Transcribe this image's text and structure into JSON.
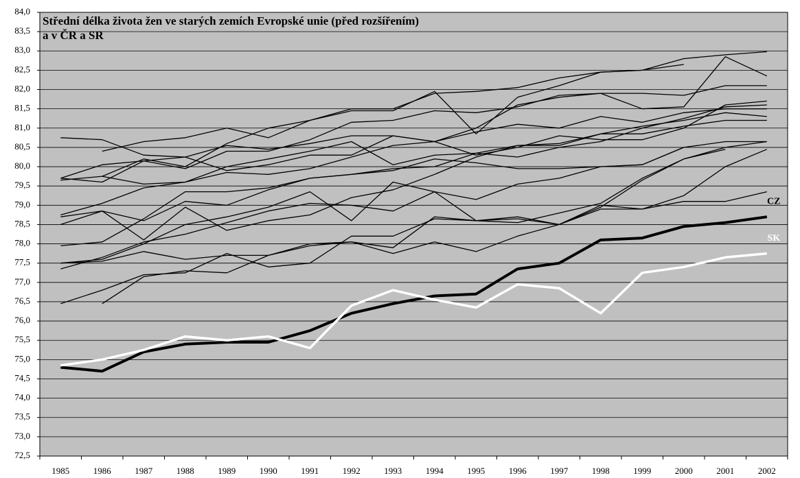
{
  "chart_data": {
    "type": "line",
    "title": [
      "Střední délka života žen ve starých zemích Evropské unie (před rozšířením)",
      "a v ČR a SR"
    ],
    "categories": [
      "1985",
      "1986",
      "1987",
      "1988",
      "1989",
      "1990",
      "1991",
      "1992",
      "1993",
      "1994",
      "1995",
      "1996",
      "1997",
      "1998",
      "1999",
      "2000",
      "2001",
      "2002"
    ],
    "ylim": [
      72.5,
      84.0
    ],
    "yticks": [
      {
        "value": 72.5,
        "label": "72,5"
      },
      {
        "value": 73,
        "label": "73,0"
      },
      {
        "value": 73.5,
        "label": "73,5"
      },
      {
        "value": 74,
        "label": "74,0"
      },
      {
        "value": 74.5,
        "label": "74,5"
      },
      {
        "value": 75,
        "label": "75,0"
      },
      {
        "value": 75.5,
        "label": "75,5"
      },
      {
        "value": 76,
        "label": "76,0"
      },
      {
        "value": 76.5,
        "label": "76,5"
      },
      {
        "value": 77,
        "label": "77,0"
      },
      {
        "value": 77.5,
        "label": "77,5"
      },
      {
        "value": 78,
        "label": "78,0"
      },
      {
        "value": 78.5,
        "label": "78,5"
      },
      {
        "value": 79,
        "label": "79,0"
      },
      {
        "value": 79.5,
        "label": "79,5"
      },
      {
        "value": 80,
        "label": "80,0"
      },
      {
        "value": 80.5,
        "label": "80,5"
      },
      {
        "value": 81,
        "label": "81,0"
      },
      {
        "value": 81.5,
        "label": "81,5"
      },
      {
        "value": 82,
        "label": "82,0"
      },
      {
        "value": 82.5,
        "label": "82,5"
      },
      {
        "value": 83,
        "label": "83,0"
      },
      {
        "value": 83.5,
        "label": "83,5"
      },
      {
        "value": 84,
        "label": "84,0"
      }
    ],
    "grid": true,
    "series": [
      {
        "color": "#000000",
        "line_width": 1.3,
        "values": [
          80.75,
          80.7,
          80.3,
          80.25,
          80.55,
          80.45,
          80.6,
          80.8,
          80.8,
          80.65,
          80.9,
          81.1,
          81.0,
          81.3,
          81.15,
          81.4,
          81.5,
          81.5
        ]
      },
      {
        "color": "#000000",
        "line_width": 1.3,
        "values": [
          null,
          80.4,
          80.65,
          80.75,
          81.0,
          80.75,
          81.2,
          81.45,
          81.45,
          81.95,
          80.85,
          81.8,
          82.1,
          82.45,
          82.5,
          82.8,
          82.9,
          82.98
        ]
      },
      {
        "color": "#000000",
        "line_width": 1.3,
        "values": [
          79.7,
          80.05,
          80.15,
          80.25,
          79.9,
          80.05,
          80.3,
          80.3,
          80.8,
          80.65,
          81.0,
          81.6,
          81.8,
          81.9,
          81.5,
          81.55,
          82.85,
          82.35
        ]
      },
      {
        "color": "#000000",
        "line_width": 1.3,
        "values": [
          79.65,
          79.75,
          80.2,
          80.0,
          80.6,
          81.0,
          81.2,
          81.5,
          81.5,
          81.9,
          81.95,
          82.05,
          82.3,
          82.45,
          82.5,
          82.65,
          null,
          null
        ]
      },
      {
        "color": "#000000",
        "line_width": 1.3,
        "values": [
          79.7,
          79.6,
          80.15,
          79.95,
          80.4,
          80.4,
          80.7,
          81.15,
          81.2,
          81.45,
          81.4,
          81.55,
          81.85,
          81.9,
          81.9,
          81.85,
          82.1,
          82.1
        ]
      },
      {
        "color": "#000000",
        "line_width": 1.3,
        "values": [
          null,
          79.75,
          79.55,
          79.6,
          79.85,
          79.8,
          79.95,
          80.25,
          80.55,
          80.65,
          80.3,
          80.5,
          80.8,
          80.7,
          80.7,
          81.0,
          81.6,
          81.7
        ]
      },
      {
        "color": "#000000",
        "line_width": 1.3,
        "values": [
          78.75,
          79.05,
          79.45,
          79.6,
          80.0,
          80.2,
          80.4,
          80.65,
          80.05,
          80.3,
          80.35,
          80.55,
          80.6,
          80.85,
          81.05,
          81.2,
          81.4,
          81.3
        ]
      },
      {
        "color": "#000000",
        "line_width": 1.3,
        "values": [
          78.7,
          78.85,
          78.6,
          79.1,
          79.0,
          79.4,
          79.7,
          79.8,
          79.9,
          80.2,
          80.1,
          79.95,
          79.95,
          80.0,
          80.05,
          80.5,
          80.65,
          80.65
        ]
      },
      {
        "color": "#000000",
        "line_width": 1.3,
        "values": [
          78.5,
          78.85,
          78.1,
          78.95,
          78.35,
          78.6,
          78.75,
          79.2,
          79.4,
          79.8,
          80.25,
          80.55,
          80.55,
          80.85,
          80.85,
          81.05,
          81.2,
          81.2
        ]
      },
      {
        "color": "#000000",
        "line_width": 1.3,
        "values": [
          77.95,
          78.05,
          78.65,
          79.35,
          79.35,
          79.45,
          79.7,
          79.8,
          79.95,
          80.0,
          80.35,
          80.25,
          80.5,
          80.65,
          81.0,
          81.25,
          81.55,
          81.6
        ]
      },
      {
        "color": "#000000",
        "line_width": 1.3,
        "values": [
          77.5,
          77.6,
          78.0,
          78.5,
          78.7,
          78.95,
          79.35,
          78.6,
          79.6,
          79.35,
          79.15,
          79.55,
          79.7,
          80.0,
          80.05,
          80.5,
          null,
          null
        ]
      },
      {
        "color": "#000000",
        "line_width": 1.3,
        "values": [
          77.5,
          77.55,
          77.8,
          77.6,
          77.7,
          77.7,
          77.95,
          78.05,
          77.9,
          78.7,
          78.6,
          78.55,
          78.8,
          79.05,
          79.7,
          80.2,
          80.5,
          80.65
        ]
      },
      {
        "color": "#000000",
        "line_width": 1.3,
        "values": [
          77.35,
          77.65,
          78.05,
          78.25,
          78.55,
          78.85,
          79.05,
          79.0,
          78.85,
          79.35,
          78.6,
          78.7,
          78.5,
          79.0,
          78.9,
          79.1,
          79.1,
          79.35
        ]
      },
      {
        "color": "#000000",
        "line_width": 1.3,
        "values": [
          76.45,
          76.8,
          77.2,
          77.25,
          77.75,
          77.4,
          77.5,
          78.2,
          78.2,
          78.65,
          78.6,
          78.65,
          78.5,
          78.9,
          78.9,
          79.25,
          80.0,
          80.45
        ]
      },
      {
        "color": "#000000",
        "line_width": 1.3,
        "values": [
          null,
          76.45,
          77.15,
          77.3,
          77.25,
          77.7,
          78.0,
          78.05,
          77.75,
          78.05,
          77.8,
          78.2,
          78.5,
          78.95,
          79.65,
          80.2,
          80.45,
          null
        ]
      },
      {
        "name": "CZ",
        "color": "#000000",
        "line_width": 4,
        "values": [
          74.8,
          74.7,
          75.2,
          75.4,
          75.45,
          75.45,
          75.75,
          76.2,
          76.45,
          76.65,
          76.7,
          77.35,
          77.5,
          78.1,
          78.15,
          78.45,
          78.55,
          78.7
        ]
      },
      {
        "name": "SK",
        "color": "#ffffff",
        "line_width": 3.5,
        "values": [
          74.85,
          75.0,
          75.25,
          75.6,
          75.5,
          75.6,
          75.3,
          76.4,
          76.8,
          76.55,
          76.35,
          76.95,
          76.85,
          76.2,
          77.25,
          77.4,
          77.65,
          77.75
        ]
      }
    ]
  }
}
